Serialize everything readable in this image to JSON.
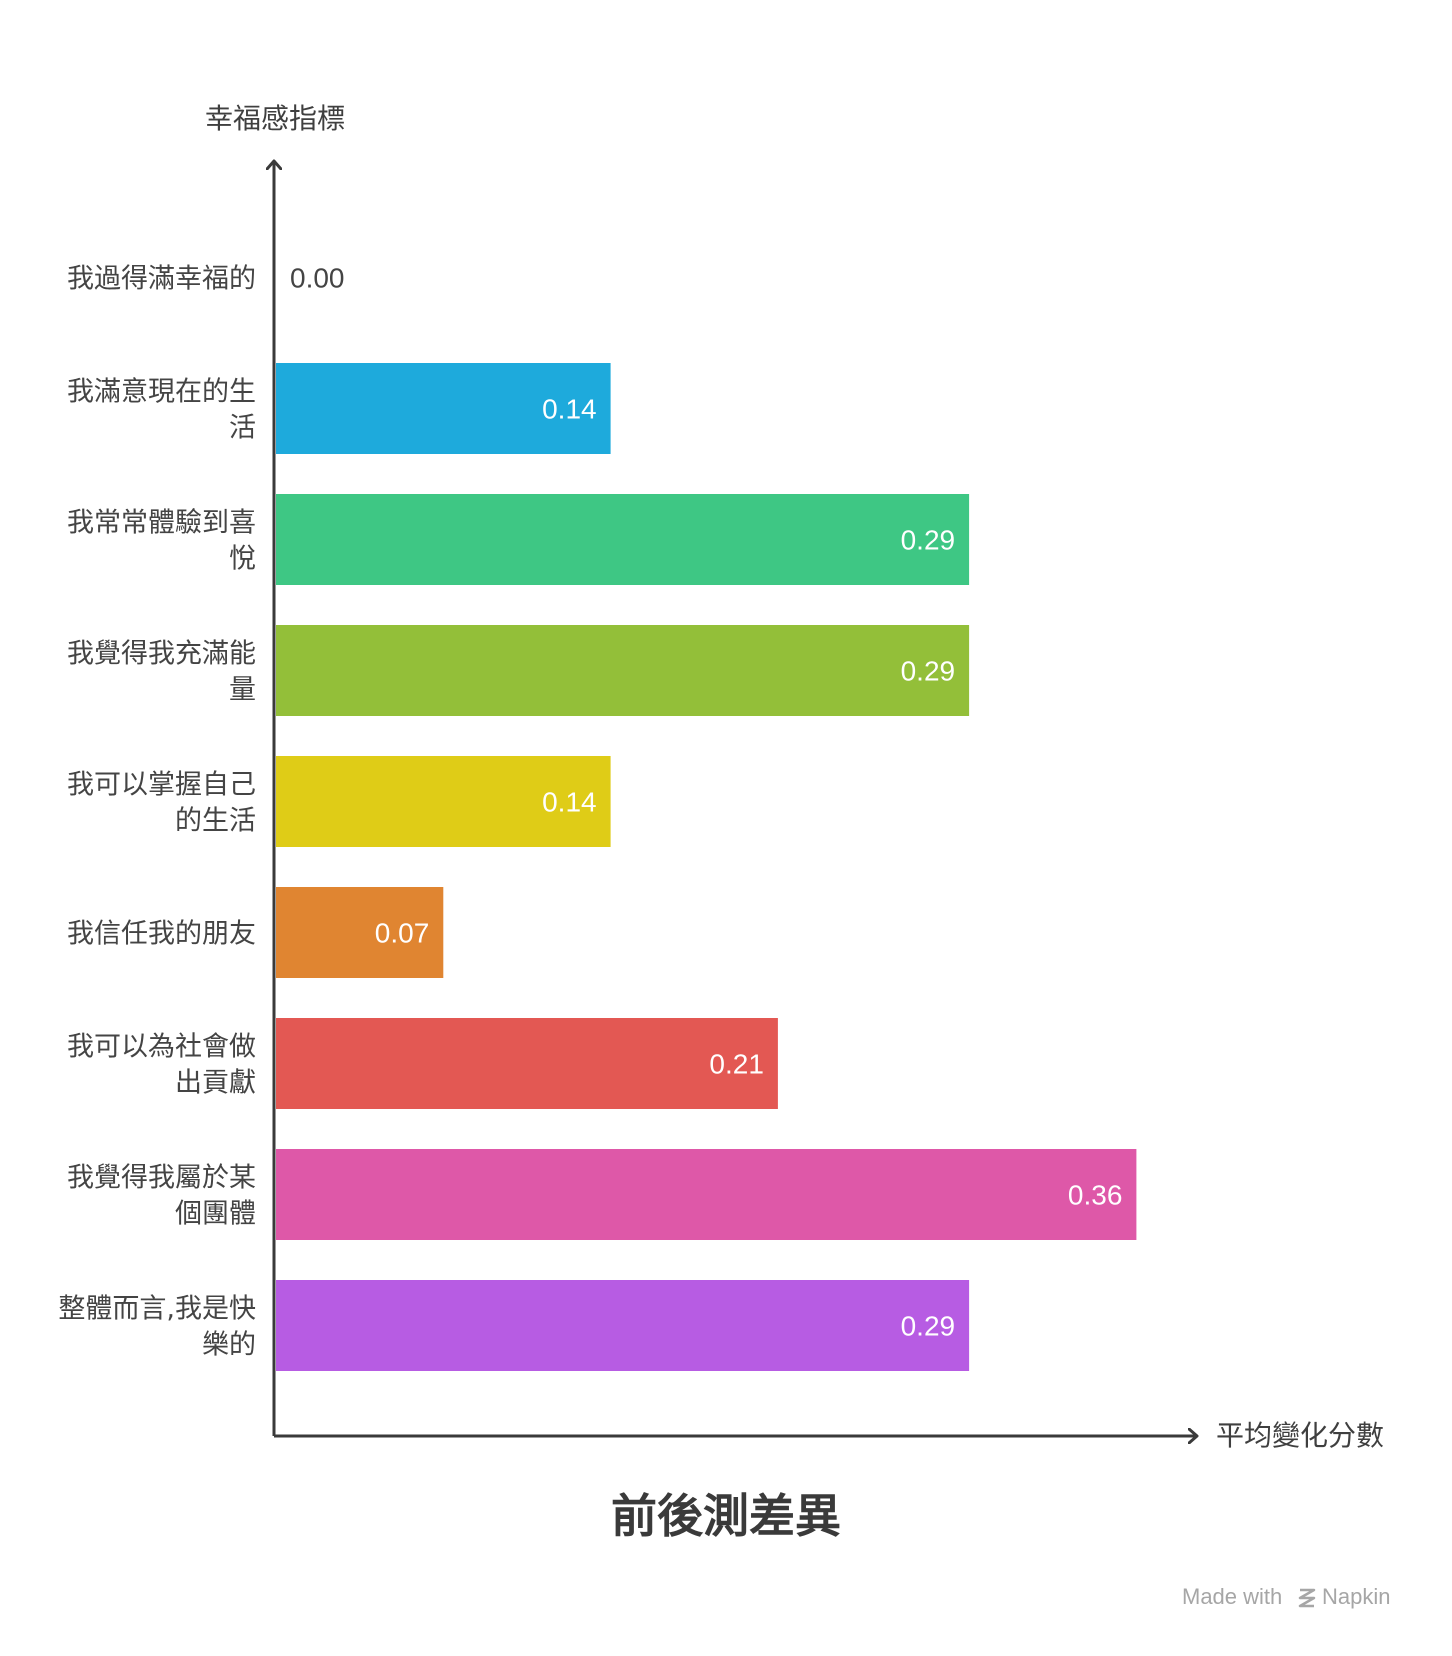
{
  "chart_data": {
    "type": "bar",
    "orientation": "horizontal",
    "title": "前後測差異",
    "ylabel": "幸福感指標",
    "xlabel": "平均變化分數",
    "xlim": [
      0,
      0.36
    ],
    "grid": false,
    "legend": "none",
    "categories": [
      "我過得滿幸福的",
      "我滿意現在的生活",
      "我常常體驗到喜悅",
      "我覺得我充滿能量",
      "我可以掌握自己的生活",
      "我信任我的朋友",
      "我可以為社會做出貢獻",
      "我覺得我屬於某個團體",
      "整體而言,我是快樂的"
    ],
    "category_lines": [
      [
        "我過得滿幸福的"
      ],
      [
        "我滿意現在的生",
        "活"
      ],
      [
        "我常常體驗到喜",
        "悅"
      ],
      [
        "我覺得我充滿能",
        "量"
      ],
      [
        "我可以掌握自己",
        "的生活"
      ],
      [
        "我信任我的朋友"
      ],
      [
        "我可以為社會做",
        "出貢獻"
      ],
      [
        "我覺得我屬於某",
        "個團體"
      ],
      [
        "整體而言,我是快",
        "樂的"
      ]
    ],
    "values": [
      0.0,
      0.14,
      0.29,
      0.29,
      0.14,
      0.07,
      0.21,
      0.36,
      0.29
    ],
    "value_labels": [
      "0.00",
      "0.14",
      "0.29",
      "0.29",
      "0.14",
      "0.07",
      "0.21",
      "0.36",
      "0.29"
    ],
    "colors": [
      "#1eaadc",
      "#1eaadc",
      "#3ec784",
      "#93bf39",
      "#dfcc17",
      "#e08531",
      "#e35853",
      "#de58a8",
      "#b75ce3"
    ]
  },
  "footer": {
    "made_with": "Made with",
    "brand": "Napkin"
  }
}
